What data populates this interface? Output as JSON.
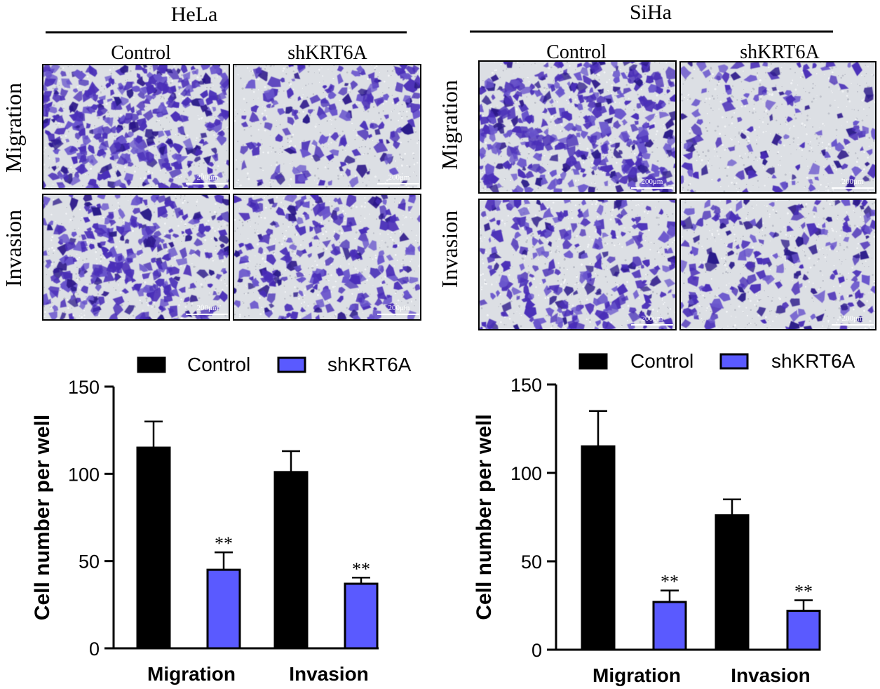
{
  "panels": [
    {
      "cell_line": "HeLa",
      "group_labels": [
        "Control",
        "shKRT6A"
      ],
      "row_labels": [
        "Migration",
        "Invasion"
      ],
      "scale_bar_label": "200μm"
    },
    {
      "cell_line": "SiHa",
      "group_labels": [
        "Control",
        "shKRT6A"
      ],
      "row_labels": [
        "Migration",
        "Invasion"
      ],
      "scale_bar_label": "200μm"
    }
  ],
  "colors": {
    "control": "#000000",
    "shkrt6a": "#5a5aff",
    "stain": "#4a2fb8",
    "field": "#dcdfe4"
  },
  "chart_data": [
    {
      "type": "bar",
      "title": "",
      "xlabel": "",
      "ylabel": "Cell number per well",
      "categories": [
        "Migration",
        "Invasion"
      ],
      "ylim": [
        0,
        150
      ],
      "yticks": [
        0,
        50,
        100,
        150
      ],
      "legend_position": "top",
      "series": [
        {
          "name": "Control",
          "values": [
            115,
            101
          ],
          "errors": [
            15,
            12
          ],
          "annotations": [
            "",
            ""
          ]
        },
        {
          "name": "shKRT6A",
          "values": [
            45,
            37
          ],
          "errors": [
            10,
            3.5
          ],
          "annotations": [
            "**",
            "**"
          ]
        }
      ]
    },
    {
      "type": "bar",
      "title": "",
      "xlabel": "",
      "ylabel": "Cell number per well",
      "categories": [
        "Migration",
        "Invasion"
      ],
      "ylim": [
        0,
        150
      ],
      "yticks": [
        0,
        50,
        100,
        150
      ],
      "legend_position": "top",
      "series": [
        {
          "name": "Control",
          "values": [
            115,
            76
          ],
          "errors": [
            20,
            9
          ],
          "annotations": [
            "",
            ""
          ]
        },
        {
          "name": "shKRT6A",
          "values": [
            27,
            22
          ],
          "errors": [
            6.5,
            6
          ],
          "annotations": [
            "**",
            "**"
          ]
        }
      ]
    }
  ]
}
